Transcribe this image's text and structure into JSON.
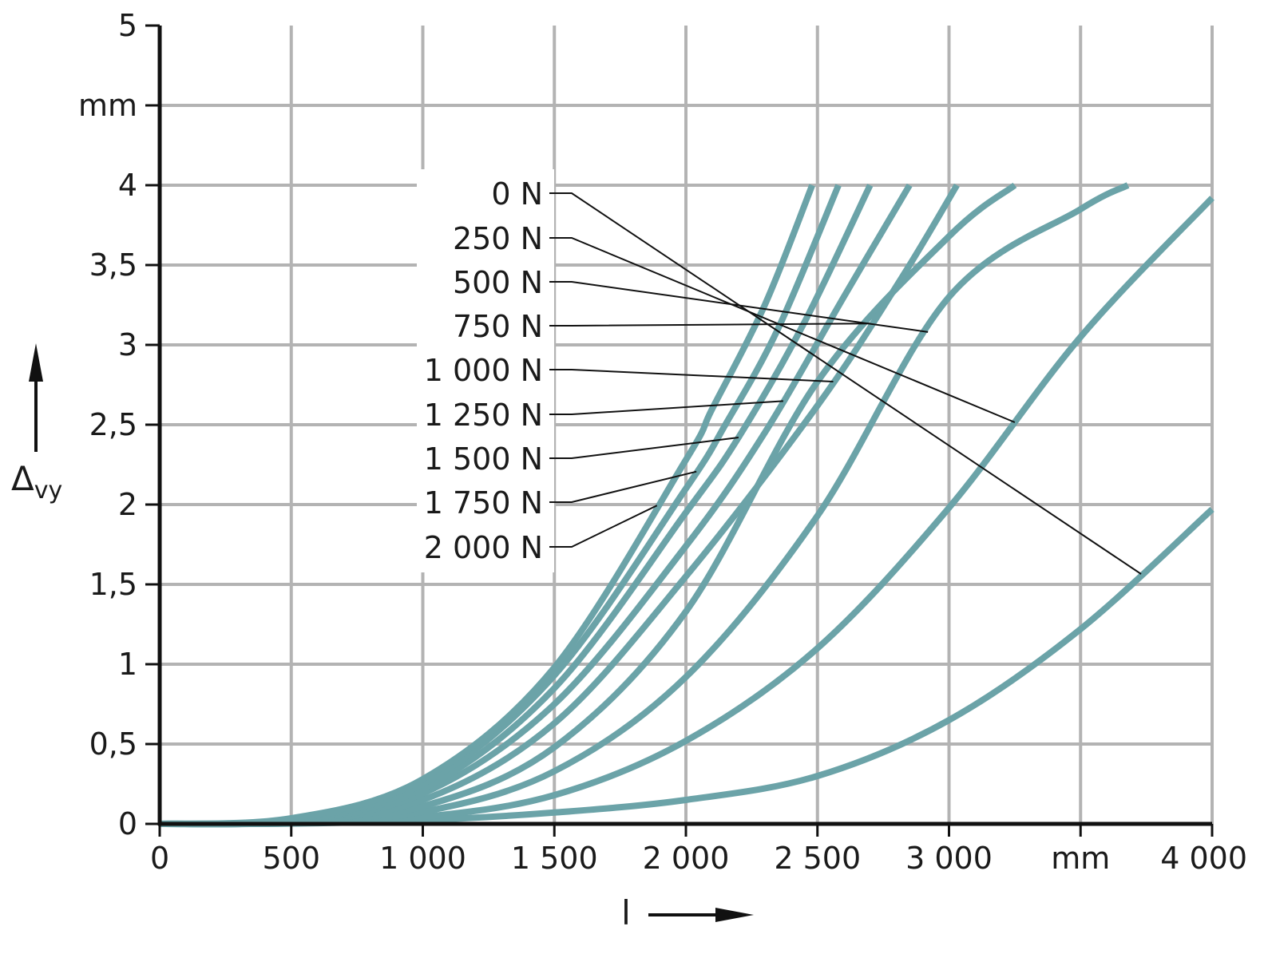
{
  "chart_data": {
    "type": "line",
    "xlabel": "l",
    "ylabel": "Δ",
    "ylabel_sub": "vy",
    "x_unit": "mm",
    "y_unit": "mm",
    "xlim": [
      0,
      4000
    ],
    "ylim": [
      0,
      5
    ],
    "grid": true,
    "x_ticks": [
      {
        "value": 0,
        "label": "0"
      },
      {
        "value": 500,
        "label": "500"
      },
      {
        "value": 1000,
        "label": "1 000"
      },
      {
        "value": 1500,
        "label": "1 500"
      },
      {
        "value": 2000,
        "label": "2 000"
      },
      {
        "value": 2500,
        "label": "2 500"
      },
      {
        "value": 3000,
        "label": "3 000"
      },
      {
        "value": 4000,
        "label": "4 000"
      }
    ],
    "y_ticks": [
      {
        "value": 0,
        "label": "0"
      },
      {
        "value": 0.5,
        "label": "0,5"
      },
      {
        "value": 1,
        "label": "1"
      },
      {
        "value": 1.5,
        "label": "1,5"
      },
      {
        "value": 2,
        "label": "2"
      },
      {
        "value": 2.5,
        "label": "2,5"
      },
      {
        "value": 3,
        "label": "3"
      },
      {
        "value": 3.5,
        "label": "3,5"
      },
      {
        "value": 4,
        "label": "4"
      },
      {
        "value": 5,
        "label": "5"
      }
    ],
    "series": [
      {
        "name": "0 N",
        "label_x": 3730,
        "x": [
          0,
          500,
          1000,
          1500,
          2000,
          2500,
          3000,
          3500,
          4000
        ],
        "values": [
          0,
          0.002,
          0.023,
          0.071,
          0.15,
          0.3,
          0.65,
          1.22,
          1.97
        ]
      },
      {
        "name": "250 N",
        "label_x": 3250,
        "x": [
          0,
          500,
          1000,
          1500,
          2000,
          2500,
          3000,
          3500,
          4000
        ],
        "values": [
          0,
          0.004,
          0.043,
          0.18,
          0.52,
          1.1,
          1.98,
          3.05,
          3.92
        ]
      },
      {
        "name": "500 N",
        "label_x": 2920,
        "x": [
          0,
          500,
          1000,
          1500,
          2000,
          2500,
          3000,
          3500,
          3680
        ],
        "values": [
          0,
          0.006,
          0.075,
          0.33,
          0.92,
          1.93,
          3.3,
          3.85,
          4
        ]
      },
      {
        "name": "750 N",
        "label_x": 2700,
        "x": [
          0,
          500,
          1000,
          1500,
          2000,
          2500,
          3000,
          3250
        ],
        "values": [
          0,
          0.01,
          0.11,
          0.48,
          1.33,
          2.77,
          3.68,
          4
        ]
      },
      {
        "name": "1 000 N",
        "label_x": 2560,
        "x": [
          0,
          500,
          1000,
          1500,
          2000,
          2500,
          2820,
          3030
        ],
        "values": [
          0,
          0.014,
          0.15,
          0.63,
          1.55,
          2.62,
          3.42,
          4
        ]
      },
      {
        "name": "1 250 N",
        "label_x": 2370,
        "x": [
          0,
          500,
          1000,
          1500,
          2000,
          2300,
          2600,
          2850
        ],
        "values": [
          0,
          0.019,
          0.19,
          0.75,
          1.74,
          2.45,
          3.3,
          4
        ]
      },
      {
        "name": "1 500 N",
        "label_x": 2200,
        "x": [
          0,
          500,
          1000,
          1500,
          2000,
          2200,
          2450,
          2700
        ],
        "values": [
          0,
          0.024,
          0.22,
          0.85,
          1.95,
          2.42,
          3.14,
          4
        ]
      },
      {
        "name": "1 750 N",
        "label_x": 2040,
        "x": [
          0,
          500,
          1000,
          1500,
          2000,
          2150,
          2350,
          2580
        ],
        "values": [
          0,
          0.03,
          0.25,
          0.93,
          2.1,
          2.5,
          3.1,
          4
        ]
      },
      {
        "name": "2 000 N",
        "label_x": 1890,
        "x": [
          0,
          500,
          1000,
          1500,
          2000,
          2100,
          2300,
          2480
        ],
        "values": [
          0,
          0.035,
          0.28,
          0.98,
          2.28,
          2.6,
          3.25,
          4
        ]
      }
    ],
    "legend_placement": "center, leader lines to curves",
    "colors": {
      "series": "#6ba3a8",
      "grid": "#b3b3b3",
      "axis": "#111111"
    }
  }
}
